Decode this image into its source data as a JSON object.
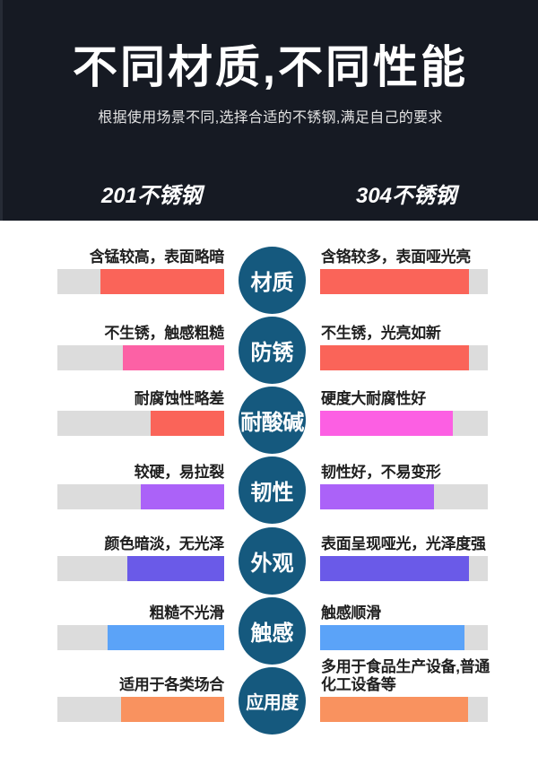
{
  "header": {
    "title": "不同材质,不同性能",
    "subtitle": "根据使用场景不同,选择合适的不锈钢,满足自己的要求",
    "columns": {
      "left": "201不锈钢",
      "right": "304不锈钢"
    },
    "background": "#161a23",
    "text_color": "#ffffff"
  },
  "comparison": {
    "track_color": "#dcdcdc",
    "badge_color": "#15597e",
    "rows": [
      {
        "category": "材质",
        "left": {
          "text": "含锰较高，表面略暗",
          "percent": 74,
          "color": "#fa6459"
        },
        "right": {
          "text": "含铬较多，表面哑光亮",
          "percent": 89,
          "color": "#fa6459"
        }
      },
      {
        "category": "防锈",
        "left": {
          "text": "不生锈，触感粗糙",
          "percent": 61,
          "color": "#fc61a5"
        },
        "right": {
          "text": "不生锈，光亮如新",
          "percent": 89,
          "color": "#fa6459"
        }
      },
      {
        "category": "耐酸碱",
        "left": {
          "text": "耐腐蚀性略差",
          "percent": 44,
          "color": "#fa6459"
        },
        "right": {
          "text": "硬度大耐腐性好",
          "percent": 79,
          "color": "#fc5fe3"
        }
      },
      {
        "category": "韧性",
        "left": {
          "text": "较硬，易拉裂",
          "percent": 50,
          "color": "#ab62f8"
        },
        "right": {
          "text": "韧性好，不易变形",
          "percent": 68,
          "color": "#ab62f8"
        }
      },
      {
        "category": "外观",
        "left": {
          "text": "颜色暗淡，无光泽",
          "percent": 58,
          "color": "#6a5ae8"
        },
        "right": {
          "text": "表面呈现哑光，光泽度强",
          "percent": 89,
          "color": "#6a5ae8"
        }
      },
      {
        "category": "触感",
        "left": {
          "text": "粗糙不光滑",
          "percent": 70,
          "color": "#5ba3f8"
        },
        "right": {
          "text": "触感顺滑",
          "percent": 86,
          "color": "#5ba3f8"
        }
      },
      {
        "category": "应用度",
        "left": {
          "text": "适用于各类场合",
          "percent": 62,
          "color": "#f9925f"
        },
        "right": {
          "text": "多用于食品生产设备,普通\n化工设备等",
          "percent": 88,
          "color": "#f9925f"
        }
      }
    ]
  }
}
